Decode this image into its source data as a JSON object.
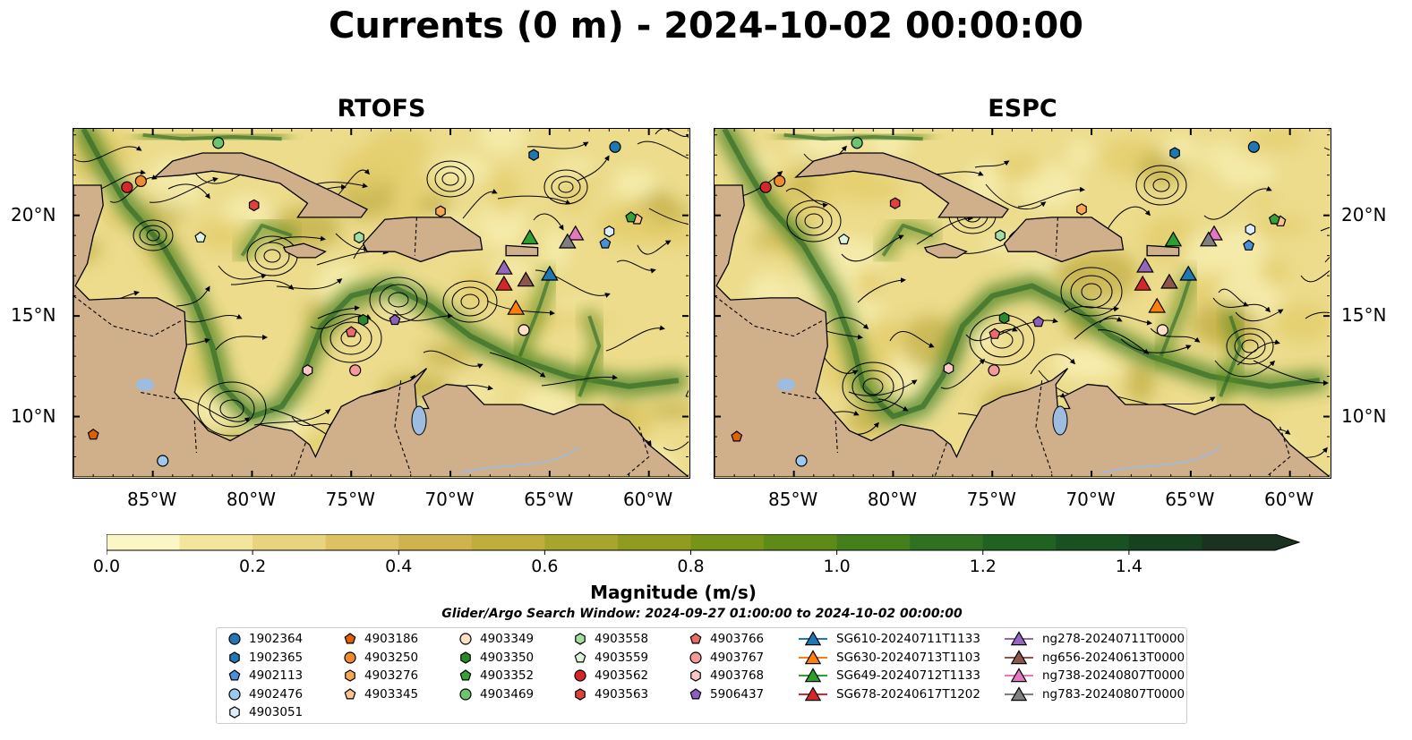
{
  "title": "Currents (0 m) - 2024-10-02 00:00:00",
  "panels": [
    {
      "title": "RTOFS"
    },
    {
      "title": "ESPC"
    }
  ],
  "lat_ticks": [
    "20°N",
    "15°N",
    "10°N"
  ],
  "lon_ticks": [
    "85°W",
    "80°W",
    "75°W",
    "70°W",
    "65°W",
    "60°W"
  ],
  "extent": {
    "lon_min": -89.0,
    "lon_max": -58.0,
    "lat_min": 7.0,
    "lat_max": 24.3
  },
  "colorbar": {
    "label": "Magnitude (m/s)",
    "ticks": [
      "0.0",
      "0.2",
      "0.4",
      "0.6",
      "0.8",
      "1.0",
      "1.2",
      "1.4"
    ],
    "min": 0.0,
    "max": 1.6,
    "extend": "max",
    "colors": [
      "#fbf6c5",
      "#f3e59c",
      "#e8d37e",
      "#ddc162",
      "#d0b24e",
      "#bfae3c",
      "#a8a52c",
      "#8f9c1f",
      "#779318",
      "#5e8a18",
      "#457f1c",
      "#2f7120",
      "#1f6222",
      "#195122",
      "#174220",
      "#1b3220"
    ]
  },
  "search_window": "Glider/Argo Search Window: 2024-09-27 01:00:00 to 2024-10-02 00:00:00",
  "legend": [
    {
      "label": "1902364",
      "marker": "circle",
      "color": "#1f77b4"
    },
    {
      "label": "1902365",
      "marker": "hexagon",
      "color": "#1f77b4"
    },
    {
      "label": "4902113",
      "marker": "pentagon",
      "color": "#4a90d9"
    },
    {
      "label": "4902476",
      "marker": "circle",
      "color": "#9ec9ef"
    },
    {
      "label": "4903051",
      "marker": "hexagon",
      "color": "#dcecfb"
    },
    {
      "label": "4903186",
      "marker": "pentagon",
      "color": "#e06000"
    },
    {
      "label": "4903250",
      "marker": "circle",
      "color": "#f28a2e"
    },
    {
      "label": "4903276",
      "marker": "hexagon",
      "color": "#f9a655"
    },
    {
      "label": "4903345",
      "marker": "pentagon",
      "color": "#fcc38a"
    },
    {
      "label": "4903349",
      "marker": "circle",
      "color": "#fde0c5"
    },
    {
      "label": "4903350",
      "marker": "hexagon",
      "color": "#2a8a2a"
    },
    {
      "label": "4903352",
      "marker": "pentagon",
      "color": "#34a334"
    },
    {
      "label": "4903469",
      "marker": "circle",
      "color": "#6cc46c"
    },
    {
      "label": "4903558",
      "marker": "hexagon",
      "color": "#a3dea3"
    },
    {
      "label": "4903559",
      "marker": "pentagon",
      "color": "#dff4df"
    },
    {
      "label": "4903562",
      "marker": "circle",
      "color": "#d62728"
    },
    {
      "label": "4903563",
      "marker": "hexagon",
      "color": "#e0413f"
    },
    {
      "label": "4903766",
      "marker": "pentagon",
      "color": "#ee6a6a"
    },
    {
      "label": "4903767",
      "marker": "circle",
      "color": "#f59a9a"
    },
    {
      "label": "4903768",
      "marker": "hexagon",
      "color": "#fbc6c6"
    },
    {
      "label": "5906437",
      "marker": "pentagon",
      "color": "#8c5fc0"
    },
    {
      "label": "SG610-20240711T1133",
      "marker": "triangle",
      "color": "#1f77b4"
    },
    {
      "label": "SG630-20240713T1103",
      "marker": "triangle",
      "color": "#ff7f0e"
    },
    {
      "label": "SG649-20240712T1133",
      "marker": "triangle",
      "color": "#2ca02c"
    },
    {
      "label": "SG678-20240617T1202",
      "marker": "triangle",
      "color": "#d62728"
    },
    {
      "label": "ng278-20240711T0000",
      "marker": "triangle",
      "color": "#9467bd"
    },
    {
      "label": "ng656-20240613T0000",
      "marker": "triangle",
      "color": "#8c564b"
    },
    {
      "label": "ng738-20240807T0000",
      "marker": "triangle",
      "color": "#e377c2"
    },
    {
      "label": "ng783-20240807T0000",
      "marker": "triangle",
      "color": "#7f7f7f"
    }
  ],
  "platforms": [
    {
      "label": "1902364",
      "lon": -61.7,
      "lat": 23.4
    },
    {
      "label": "1902365",
      "lon": -65.8,
      "lat": 23.0
    },
    {
      "label": "4902113",
      "lon": -62.2,
      "lat": 18.6
    },
    {
      "label": "4902476",
      "lon": -84.5,
      "lat": 7.8
    },
    {
      "label": "4903051",
      "lon": -62.0,
      "lat": 19.2
    },
    {
      "label": "4903186",
      "lon": -88.0,
      "lat": 9.1
    },
    {
      "label": "4903250",
      "lon": -85.6,
      "lat": 21.7
    },
    {
      "label": "4903276",
      "lon": -70.5,
      "lat": 20.2
    },
    {
      "label": "4903345",
      "lon": -60.6,
      "lat": 19.8
    },
    {
      "label": "4903349",
      "lon": -66.3,
      "lat": 14.3
    },
    {
      "label": "4903350",
      "lon": -74.4,
      "lat": 14.8
    },
    {
      "label": "4903352",
      "lon": -60.9,
      "lat": 19.9
    },
    {
      "label": "4903469",
      "lon": -81.7,
      "lat": 23.6
    },
    {
      "label": "4903558",
      "lon": -74.6,
      "lat": 18.9
    },
    {
      "label": "4903559",
      "lon": -82.6,
      "lat": 18.9
    },
    {
      "label": "4903562",
      "lon": -86.3,
      "lat": 21.4
    },
    {
      "label": "4903563",
      "lon": -79.9,
      "lat": 20.5
    },
    {
      "label": "4903766",
      "lon": -75.0,
      "lat": 14.2
    },
    {
      "label": "4903767",
      "lon": -74.8,
      "lat": 12.3
    },
    {
      "label": "4903768",
      "lon": -77.2,
      "lat": 12.3
    },
    {
      "label": "5906437",
      "lon": -72.8,
      "lat": 14.8
    },
    {
      "label": "SG610-20240711T1133",
      "lon": -65.0,
      "lat": 17.1
    },
    {
      "label": "SG630-20240713T1103",
      "lon": -66.7,
      "lat": 15.4
    },
    {
      "label": "SG649-20240712T1133",
      "lon": -66.0,
      "lat": 18.9
    },
    {
      "label": "SG678-20240617T1202",
      "lon": -67.3,
      "lat": 16.6
    },
    {
      "label": "ng278-20240711T0000",
      "lon": -67.3,
      "lat": 17.4
    },
    {
      "label": "ng656-20240613T0000",
      "lon": -66.2,
      "lat": 16.8
    },
    {
      "label": "ng738-20240807T0000",
      "lon": -63.7,
      "lat": 19.1
    },
    {
      "label": "ng783-20240807T0000",
      "lon": -64.1,
      "lat": 18.7
    }
  ]
}
